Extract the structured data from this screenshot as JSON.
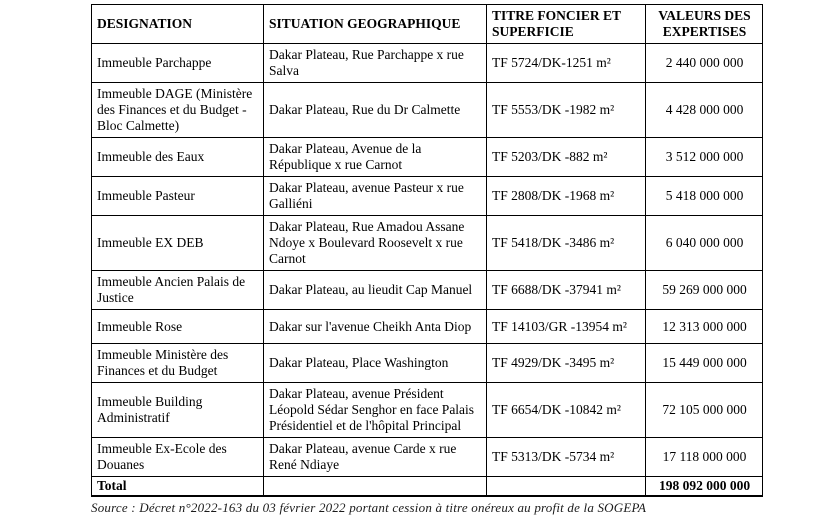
{
  "table": {
    "headers": {
      "designation": "DESIGNATION",
      "situation": "SITUATION GEOGRAPHIQUE",
      "titre": "TITRE FONCIER ET SUPERFICIE",
      "valeur": "VALEURS DES EXPERTISES"
    },
    "rows": [
      {
        "designation": "Immeuble Parchappe",
        "situation": "Dakar Plateau, Rue Parchappe x rue Salva",
        "titre": "TF 5724/DK-1251 m²",
        "valeur": "2 440 000 000"
      },
      {
        "designation": "Immeuble DAGE (Ministère des Finances et du Budget - Bloc Calmette)",
        "situation": "Dakar Plateau, Rue du Dr Calmette",
        "titre": "TF 5553/DK -1982 m²",
        "valeur": "4 428 000 000"
      },
      {
        "designation": "Immeuble des Eaux",
        "situation": "Dakar Plateau, Avenue de la République x rue Carnot",
        "titre": "TF 5203/DK -882 m²",
        "valeur": "3 512 000 000"
      },
      {
        "designation": "Immeuble Pasteur",
        "situation": "Dakar Plateau, avenue Pasteur x rue Galliéni",
        "titre": "TF 2808/DK -1968 m²",
        "valeur": "5 418 000 000"
      },
      {
        "designation": "Immeuble EX DEB",
        "situation": "Dakar Plateau, Rue Amadou Assane Ndoye x Boulevard Roosevelt x rue Carnot",
        "titre": "TF 5418/DK -3486 m²",
        "valeur": "6 040 000 000"
      },
      {
        "designation": "Immeuble Ancien Palais de Justice",
        "situation": "Dakar Plateau, au lieudit Cap Manuel",
        "titre": "TF 6688/DK -37941 m²",
        "valeur": "59 269 000 000"
      },
      {
        "designation": "Immeuble Rose",
        "situation": "Dakar sur l'avenue Cheikh Anta Diop",
        "titre": "TF 14103/GR -13954 m²",
        "valeur": "12 313 000 000"
      },
      {
        "designation": "Immeuble Ministère des Finances et du Budget",
        "situation": "Dakar Plateau, Place Washington",
        "titre": "TF 4929/DK -3495 m²",
        "valeur": "15 449 000 000"
      },
      {
        "designation": "Immeuble Building Administratif",
        "situation": "Dakar Plateau, avenue Président Léopold Sédar Senghor en face Palais Présidentiel et de l'hôpital Principal",
        "titre": "TF 6654/DK -10842 m²",
        "valeur": "72 105 000 000"
      },
      {
        "designation": "Immeuble Ex-Ecole des Douanes",
        "situation": "Dakar Plateau, avenue Carde x rue René Ndiaye",
        "titre": "TF 5313/DK -5734 m²",
        "valeur": "17 118 000 000"
      }
    ],
    "total": {
      "label": "Total",
      "valeur": "198 092 000 000"
    }
  },
  "source": "Source : Décret n°2022-163 du 03 février 2022 portant cession à titre onéreux au profit de la SOGEPA"
}
